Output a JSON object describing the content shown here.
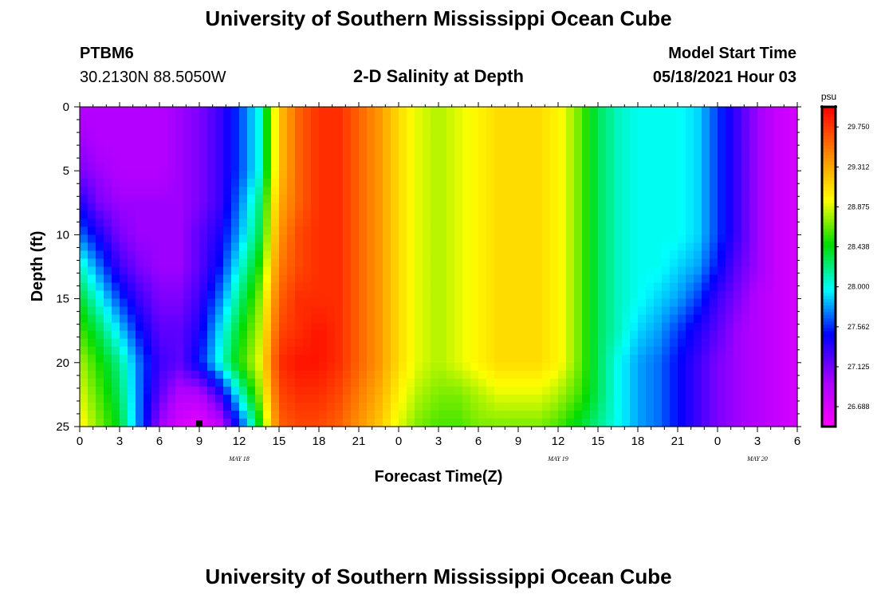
{
  "header": {
    "title": "University of Southern Mississippi Ocean Cube",
    "station_id": "PTBM6",
    "coordinates": "30.2130N  88.5050W",
    "subtitle": "2-D Salinity at Depth",
    "model_start_label": "Model Start Time",
    "model_start_value": "05/18/2021 Hour 03"
  },
  "footer": {
    "title": "University of Southern Mississippi Ocean Cube"
  },
  "chart_data": {
    "type": "heatmap",
    "title": "2-D Salinity at Depth",
    "xlabel": "Forecast Time(Z)",
    "ylabel": "Depth (ft)",
    "xlim": [
      0,
      54
    ],
    "ylim": [
      0,
      25
    ],
    "y_inverted": true,
    "x_tick_values": [
      0,
      3,
      6,
      9,
      12,
      15,
      18,
      21,
      24,
      27,
      30,
      33,
      36,
      39,
      42,
      45,
      48,
      51,
      54
    ],
    "x_tick_labels": [
      "0",
      "3",
      "6",
      "9",
      "12",
      "15",
      "18",
      "21",
      "0",
      "3",
      "6",
      "9",
      "12",
      "15",
      "18",
      "21",
      "0",
      "3",
      "6"
    ],
    "y_tick_values": [
      0,
      5,
      10,
      15,
      20,
      25
    ],
    "y_tick_labels": [
      "0",
      "5",
      "10",
      "15",
      "20",
      "25"
    ],
    "date_labels": [
      {
        "x": 12,
        "text": "MAY 18"
      },
      {
        "x": 36,
        "text": "MAY 19"
      },
      {
        "x": 51,
        "text": "MAY 20"
      }
    ],
    "current_time_marker_x": 9,
    "colorbar": {
      "unit": "psu",
      "min": 26.47,
      "max": 29.97,
      "tick_values": [
        26.688,
        27.125,
        27.562,
        28.0,
        28.438,
        28.875,
        29.312,
        29.75
      ],
      "tick_labels": [
        "26.688",
        "27.125",
        "27.562",
        "28.000",
        "28.438",
        "28.875",
        "29.312",
        "29.750"
      ]
    },
    "depths": [
      0,
      2.5,
      5,
      7.5,
      10,
      12.5,
      15,
      17.5,
      20,
      22.5,
      25
    ],
    "times": [
      0,
      1.5,
      3,
      4.5,
      6,
      7.5,
      9,
      10.5,
      12,
      13.5,
      15,
      16.5,
      18,
      19.5,
      21,
      22.5,
      24,
      25.5,
      27,
      28.5,
      30,
      31.5,
      33,
      34.5,
      36,
      37.5,
      39,
      40.5,
      42,
      43.5,
      45,
      46.5,
      48,
      49.5,
      51,
      52.5,
      54
    ],
    "salinity": [
      [
        26.9,
        26.9,
        26.9,
        26.9,
        26.9,
        27.0,
        27.1,
        27.3,
        27.6,
        28.0,
        29.2,
        29.6,
        29.8,
        29.8,
        29.6,
        29.4,
        29.1,
        28.9,
        28.8,
        28.9,
        29.0,
        29.1,
        29.1,
        29.1,
        29.0,
        28.7,
        28.3,
        28.1,
        28.0,
        28.0,
        28.0,
        27.9,
        27.6,
        27.3,
        27.0,
        26.8,
        26.7
      ],
      [
        27.0,
        26.9,
        26.9,
        26.9,
        26.9,
        27.0,
        27.1,
        27.3,
        27.6,
        28.0,
        29.2,
        29.6,
        29.8,
        29.8,
        29.6,
        29.4,
        29.1,
        28.9,
        28.8,
        28.9,
        29.0,
        29.1,
        29.1,
        29.1,
        29.0,
        28.7,
        28.3,
        28.1,
        28.0,
        28.0,
        28.0,
        27.9,
        27.6,
        27.3,
        27.0,
        26.8,
        26.7
      ],
      [
        27.1,
        27.0,
        26.9,
        26.9,
        26.9,
        27.0,
        27.1,
        27.3,
        27.6,
        28.0,
        29.2,
        29.6,
        29.8,
        29.8,
        29.6,
        29.4,
        29.1,
        28.9,
        28.8,
        28.9,
        29.0,
        29.1,
        29.1,
        29.1,
        29.0,
        28.7,
        28.3,
        28.1,
        28.0,
        28.0,
        28.0,
        27.9,
        27.6,
        27.3,
        27.0,
        26.8,
        26.7
      ],
      [
        27.4,
        27.1,
        27.0,
        27.0,
        27.0,
        27.0,
        27.1,
        27.3,
        27.7,
        28.2,
        29.3,
        29.6,
        29.8,
        29.8,
        29.6,
        29.4,
        29.1,
        28.9,
        28.8,
        28.9,
        29.0,
        29.1,
        29.1,
        29.1,
        29.0,
        28.7,
        28.3,
        28.1,
        28.0,
        28.0,
        28.0,
        27.9,
        27.6,
        27.3,
        27.0,
        26.8,
        26.7
      ],
      [
        27.7,
        27.4,
        27.1,
        27.0,
        27.0,
        27.0,
        27.2,
        27.4,
        27.8,
        28.3,
        29.4,
        29.7,
        29.8,
        29.8,
        29.6,
        29.4,
        29.1,
        28.9,
        28.8,
        28.9,
        29.0,
        29.1,
        29.1,
        29.1,
        29.0,
        28.7,
        28.3,
        28.1,
        28.0,
        28.0,
        28.0,
        27.9,
        27.6,
        27.3,
        27.0,
        26.8,
        26.7
      ],
      [
        28.1,
        27.7,
        27.3,
        27.1,
        27.0,
        27.0,
        27.2,
        27.5,
        28.0,
        28.5,
        29.5,
        29.7,
        29.8,
        29.8,
        29.6,
        29.4,
        29.1,
        28.9,
        28.8,
        28.9,
        29.0,
        29.1,
        29.1,
        29.1,
        29.0,
        28.7,
        28.3,
        28.1,
        28.0,
        28.0,
        27.9,
        27.8,
        27.5,
        27.2,
        27.0,
        26.8,
        26.7
      ],
      [
        28.4,
        28.0,
        27.6,
        27.3,
        27.1,
        27.1,
        27.3,
        27.7,
        28.2,
        28.7,
        29.6,
        29.8,
        29.8,
        29.8,
        29.6,
        29.4,
        29.1,
        28.9,
        28.8,
        28.9,
        29.0,
        29.1,
        29.1,
        29.1,
        29.0,
        28.7,
        28.3,
        28.1,
        28.0,
        27.9,
        27.8,
        27.6,
        27.3,
        27.1,
        26.9,
        26.8,
        26.7
      ],
      [
        28.6,
        28.3,
        27.9,
        27.5,
        27.2,
        27.2,
        27.4,
        27.9,
        28.4,
        28.8,
        29.7,
        29.8,
        29.9,
        29.8,
        29.6,
        29.4,
        29.1,
        28.9,
        28.8,
        28.9,
        29.0,
        29.1,
        29.1,
        29.1,
        29.0,
        28.7,
        28.3,
        28.1,
        27.9,
        27.8,
        27.6,
        27.4,
        27.2,
        27.0,
        26.9,
        26.8,
        26.7
      ],
      [
        28.8,
        28.5,
        28.2,
        27.7,
        27.3,
        27.2,
        27.5,
        28.0,
        28.5,
        28.9,
        29.8,
        29.9,
        29.9,
        29.8,
        29.6,
        29.4,
        29.1,
        28.9,
        28.8,
        28.9,
        29.0,
        29.1,
        29.1,
        29.1,
        29.0,
        28.7,
        28.3,
        28.0,
        27.8,
        27.7,
        27.5,
        27.3,
        27.1,
        27.0,
        26.9,
        26.8,
        26.7
      ],
      [
        28.9,
        28.6,
        28.3,
        27.7,
        27.2,
        26.9,
        26.9,
        27.3,
        28.0,
        28.7,
        29.7,
        29.8,
        29.8,
        29.7,
        29.5,
        29.3,
        29.0,
        28.8,
        28.7,
        28.7,
        28.8,
        28.9,
        28.9,
        28.9,
        28.8,
        28.6,
        28.3,
        28.0,
        27.8,
        27.7,
        27.5,
        27.3,
        27.1,
        27.0,
        26.9,
        26.8,
        26.7
      ],
      [
        29.0,
        28.7,
        28.4,
        27.7,
        27.0,
        26.7,
        26.6,
        26.8,
        27.5,
        28.4,
        29.6,
        29.7,
        29.7,
        29.6,
        29.4,
        29.2,
        28.9,
        28.7,
        28.6,
        28.6,
        28.7,
        28.7,
        28.7,
        28.7,
        28.6,
        28.4,
        28.2,
        28.0,
        27.8,
        27.7,
        27.5,
        27.3,
        27.1,
        27.0,
        26.9,
        26.8,
        26.7
      ]
    ]
  }
}
